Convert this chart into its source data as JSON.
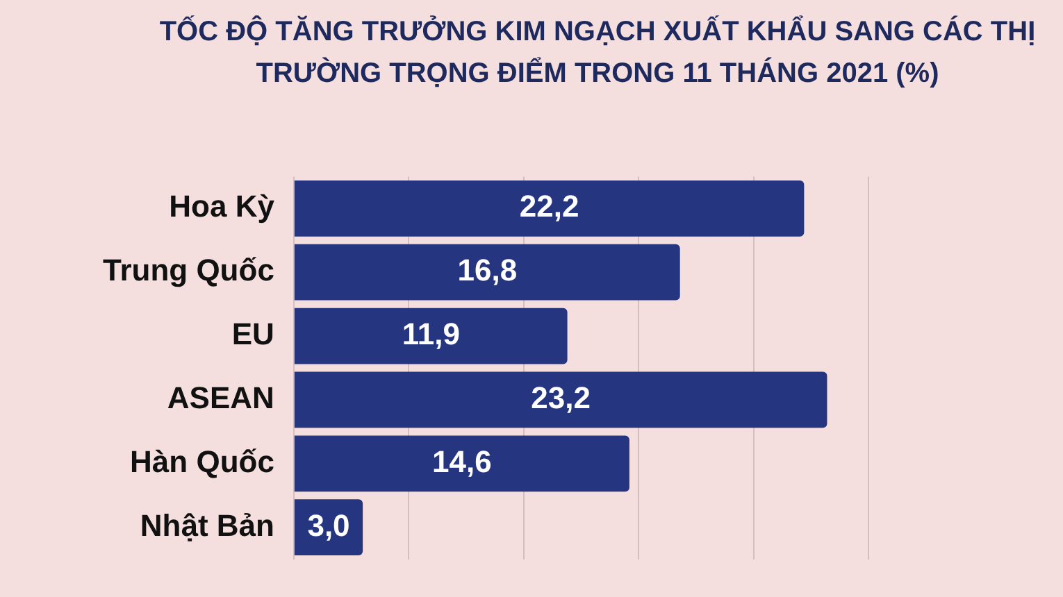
{
  "chart_data": {
    "type": "bar",
    "orientation": "horizontal",
    "title": "TỐC ĐỘ TĂNG TRƯỞNG KIM NGẠCH XUẤT KHẨU SANG CÁC THỊ TRƯỜNG TRỌNG ĐIỂM TRONG 11 THÁNG 2021 (%)",
    "categories": [
      "Hoa Kỳ",
      "Trung Quốc",
      "EU",
      "ASEAN",
      "Hàn Quốc",
      "Nhật Bản"
    ],
    "values": [
      22.2,
      16.8,
      11.9,
      23.2,
      14.6,
      3.0
    ],
    "value_labels": [
      "22,2",
      "16,8",
      "11,9",
      "23,2",
      "14,6",
      "3,0"
    ],
    "color": "#263580",
    "xlim": [
      0,
      25
    ],
    "xticks": [
      {
        "value": 0,
        "label": null
      },
      {
        "value": 5,
        "label": null
      },
      {
        "value": 10,
        "label": null
      },
      {
        "value": 15,
        "label": null
      },
      {
        "value": 20,
        "label": null
      },
      {
        "value": 25,
        "label": null
      }
    ],
    "grid": "x",
    "tick_labels": "y",
    "legend": false
  }
}
